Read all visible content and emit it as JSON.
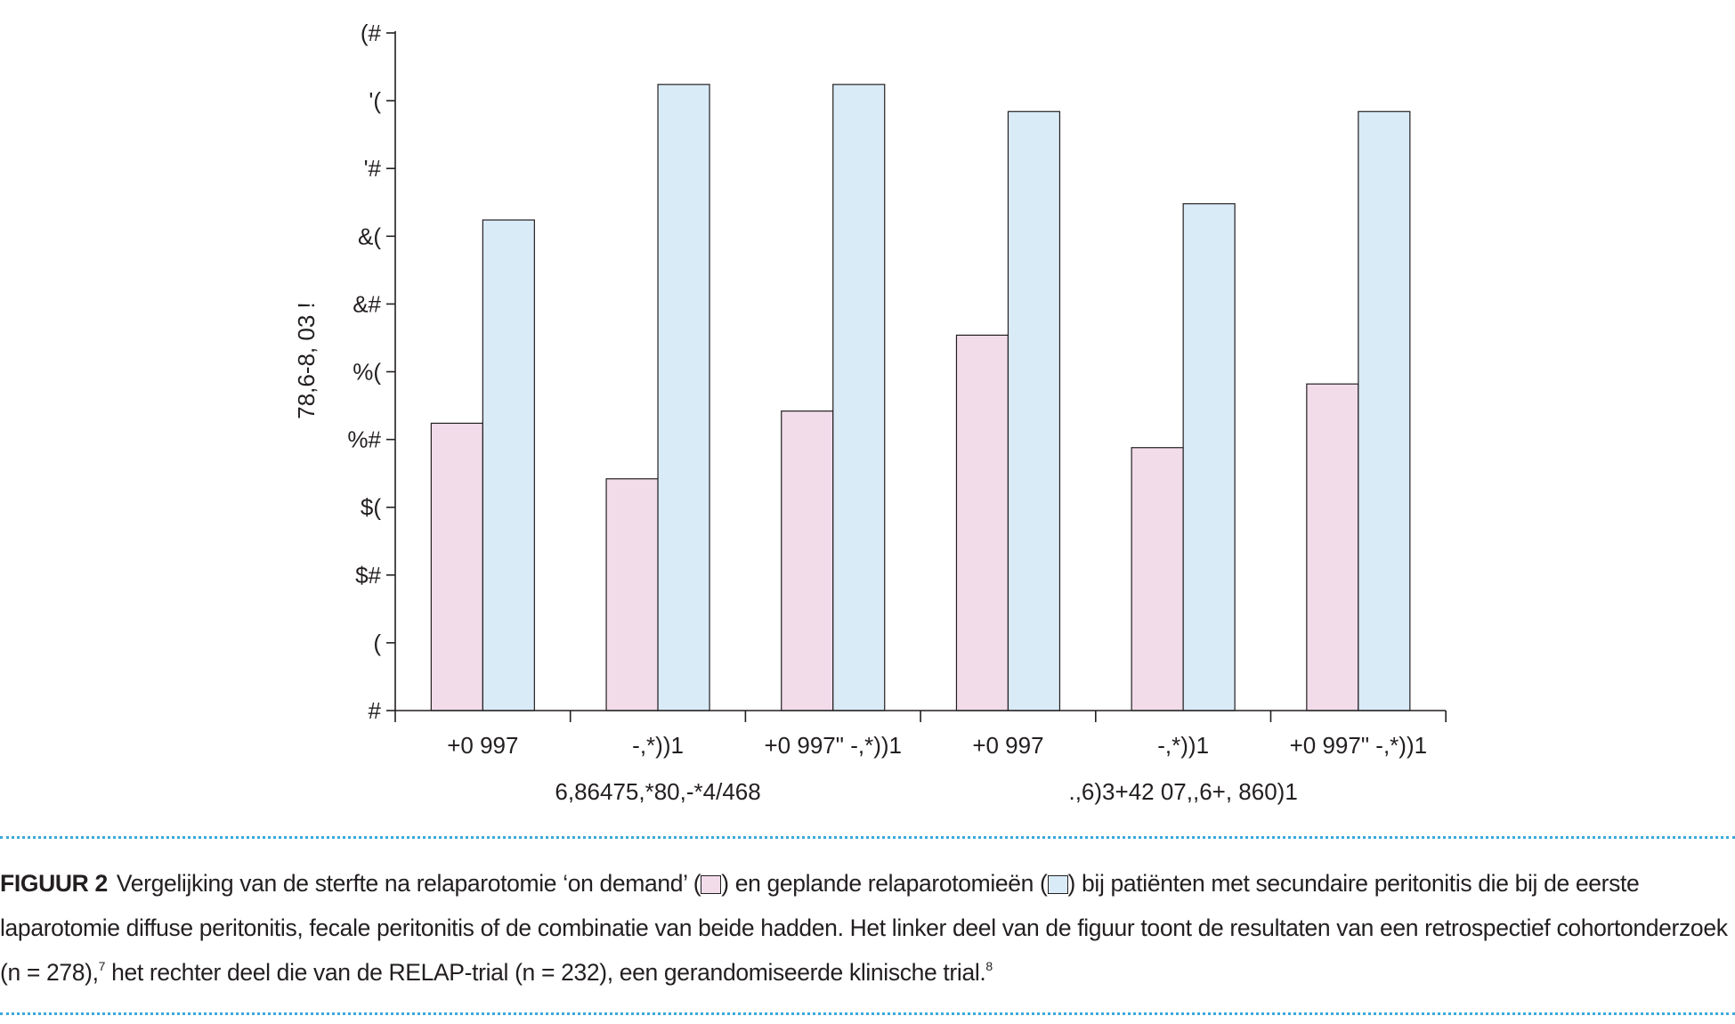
{
  "chart_data": {
    "type": "bar",
    "title": "",
    "ylabel": "78,6-8, 03 !",
    "ylim": [
      0,
      50
    ],
    "ytick_labels": [
      "#",
      "(",
      "$#",
      "$(",
      "%#",
      "%(",
      "&#",
      "&(",
      "'#",
      "'(",
      "(#"
    ],
    "ytick_values": [
      0,
      5,
      10,
      15,
      20,
      25,
      30,
      35,
      40,
      45,
      50
    ],
    "categories": [
      "+0 997",
      "-,*))1",
      "+0 997\" -,*))1",
      "+0 997",
      "-,*))1",
      "+0 997\" -,*))1"
    ],
    "groups": [
      "6,86475,*80,-*4/468",
      ".,6)3+42 07,,6+, 860)1"
    ],
    "series": [
      {
        "name": "relaparotomie 'on demand'",
        "color": "#f2dcea",
        "values": [
          21.2,
          17.1,
          22.1,
          27.7,
          19.4,
          24.1
        ]
      },
      {
        "name": "geplande relaparotomieën",
        "color": "#daebf8",
        "values": [
          36.2,
          46.2,
          46.2,
          44.2,
          37.4,
          44.2
        ]
      }
    ]
  },
  "caption": {
    "label": "FIGUUR 2",
    "text_1": "Vergelijking van de sterfte na relaparotomie ‘on demand’ (",
    "text_2": ") en geplande relaparotomieën (",
    "text_3": ") bij patiënten met secundaire peritonitis die bij de eerste laparotomie diffuse peritonitis, fecale peritonitis of de combinatie van beide hadden. Het linker deel van de figuur toont de resultaten van een retrospectief cohortonderzoek (n = 278),",
    "ref_1": "7",
    "text_4": " het rechter deel die van de RELAP-trial (n = 232), een gerandomiseerde klinische trial.",
    "ref_2": "8"
  },
  "colors": {
    "ink": "#231f20",
    "pink": "#f2dcea",
    "blue": "#daebf8",
    "dots": "#3aa9dc"
  }
}
